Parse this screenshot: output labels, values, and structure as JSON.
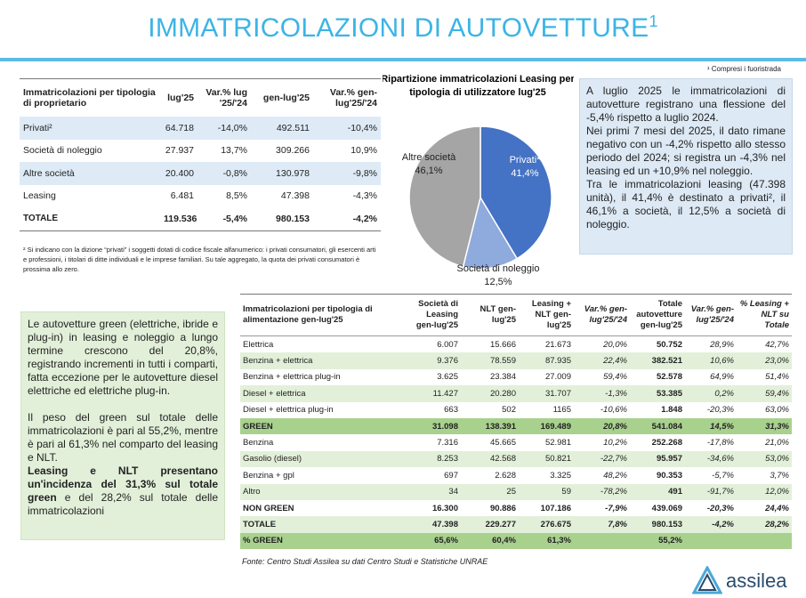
{
  "header": {
    "title": "IMMATRICOLAZIONI DI AUTOVETTURE",
    "title_sup": "1",
    "footnote": "¹ Compresi i fuoristrada"
  },
  "table1": {
    "headers": [
      "Immatricolazioni per tipologia di proprietario",
      "lug'25",
      "Var.% lug '25/'24",
      "gen-lug'25",
      "Var.% gen-lug'25/'24"
    ],
    "rows": [
      [
        "Privati²",
        "64.718",
        "-14,0%",
        "492.511",
        "-10,4%"
      ],
      [
        "Società di noleggio",
        "27.937",
        "13,7%",
        "309.266",
        "10,9%"
      ],
      [
        "Altre società",
        "20.400",
        "-0,8%",
        "130.978",
        "-9,8%"
      ],
      [
        "Leasing",
        "6.481",
        "8,5%",
        "47.398",
        "-4,3%"
      ],
      [
        "TOTALE",
        "119.536",
        "-5,4%",
        "980.153",
        "-4,2%"
      ]
    ],
    "footnote": "² Si indicano con la dizione “privati” i soggetti dotati di codice fiscale alfanumerico: i privati consumatori, gli esercenti arti e professioni, i titolari di ditte individuali e le imprese familiari. Su tale aggregato, la quota dei privati consumatori è prossima allo zero."
  },
  "pie": {
    "type": "pie",
    "title": "Ripartizione immatricolazioni Leasing per tipologia di utilizzatore lug'25",
    "categories": [
      "Privati*",
      "Società di noleggio",
      "Altre società"
    ],
    "values": [
      41.4,
      12.5,
      46.1
    ],
    "value_labels": [
      "41,4%",
      "12,5%",
      "46,1%"
    ],
    "colors": [
      "#4472c4",
      "#8faadc",
      "#a5a5a5"
    ]
  },
  "text_box1": {
    "paragraphs": [
      "A luglio 2025 le immatricolazioni di autovetture registrano una flessione del -5,4% rispetto a luglio 2024.",
      "Nei primi 7 mesi del 2025, il dato rimane negativo con un -4,2% rispetto allo stesso periodo del 2024; si registra un -4,3% nel leasing ed un +10,9% nel noleggio.",
      "Tra le immatricolazioni leasing (47.398 unità), il 41,4% è destinato a privati², il 46,1% a società, il 12,5% a società di noleggio."
    ]
  },
  "text_box2": {
    "paragraphs": [
      "Le autovetture green (elettriche, ibride e plug-in) in leasing e noleggio a lungo termine crescono del 20,8%, registrando incrementi in tutti i comparti, fatta eccezione per le autovetture diesel elettriche ed elettriche plug-in.",
      "Il peso del green sul totale delle immatricolazioni è pari al 55,2%, mentre è pari al 61,3% nel comparto del leasing e NLT."
    ],
    "emphasis": {
      "bold": "Leasing e NLT presentano un'incidenza del 31,3% sul totale green",
      "rest": " e del 28,2% sul totale delle immatricolazioni"
    }
  },
  "table2": {
    "headers": [
      "Immatricolazioni per tipologia di alimentazione gen-lug'25",
      "Società di Leasing gen-lug'25",
      "NLT gen-lug'25",
      "Leasing + NLT gen-lug'25",
      "Var.% gen-lug'25/'24",
      "Totale autovetture gen-lug'25",
      "Var.% gen-lug'25/'24",
      "% Leasing + NLT su Totale"
    ],
    "rows": [
      [
        "Elettrica",
        "6.007",
        "15.666",
        "21.673",
        "20,0%",
        "50.752",
        "28,9%",
        "42,7%"
      ],
      [
        "Benzina + elettrica",
        "9.376",
        "78.559",
        "87.935",
        "22,4%",
        "382.521",
        "10,6%",
        "23,0%"
      ],
      [
        "Benzina + elettrica plug-in",
        "3.625",
        "23.384",
        "27.009",
        "59,4%",
        "52.578",
        "64,9%",
        "51,4%"
      ],
      [
        "Diesel + elettrica",
        "11.427",
        "20.280",
        "31.707",
        "-1,3%",
        "53.385",
        "0,2%",
        "59,4%"
      ],
      [
        "Diesel + elettrica plug-in",
        "663",
        "502",
        "1165",
        "-10,6%",
        "1.848",
        "-20,3%",
        "63,0%"
      ],
      [
        "GREEN",
        "31.098",
        "138.391",
        "169.489",
        "20,8%",
        "541.084",
        "14,5%",
        "31,3%"
      ],
      [
        "Benzina",
        "7.316",
        "45.665",
        "52.981",
        "10,2%",
        "252.268",
        "-17,8%",
        "21,0%"
      ],
      [
        "Gasolio (diesel)",
        "8.253",
        "42.568",
        "50.821",
        "-22,7%",
        "95.957",
        "-34,6%",
        "53,0%"
      ],
      [
        "Benzina + gpl",
        "697",
        "2.628",
        "3.325",
        "48,2%",
        "90.353",
        "-5,7%",
        "3,7%"
      ],
      [
        "Altro",
        "34",
        "25",
        "59",
        "-78,2%",
        "491",
        "-91,7%",
        "12,0%"
      ],
      [
        "NON GREEN",
        "16.300",
        "90.886",
        "107.186",
        "-7,9%",
        "439.069",
        "-20,3%",
        "24,4%"
      ],
      [
        "TOTALE",
        "47.398",
        "229.277",
        "276.675",
        "7,8%",
        "980.153",
        "-4,2%",
        "28,2%"
      ],
      [
        "% GREEN",
        "65,6%",
        "60,4%",
        "61,3%",
        null,
        "55,2%",
        null,
        null
      ]
    ]
  },
  "source": "Fonte: Centro Studi Assilea su dati Centro Studi e Statistiche UNRAE",
  "logo": "assilea"
}
